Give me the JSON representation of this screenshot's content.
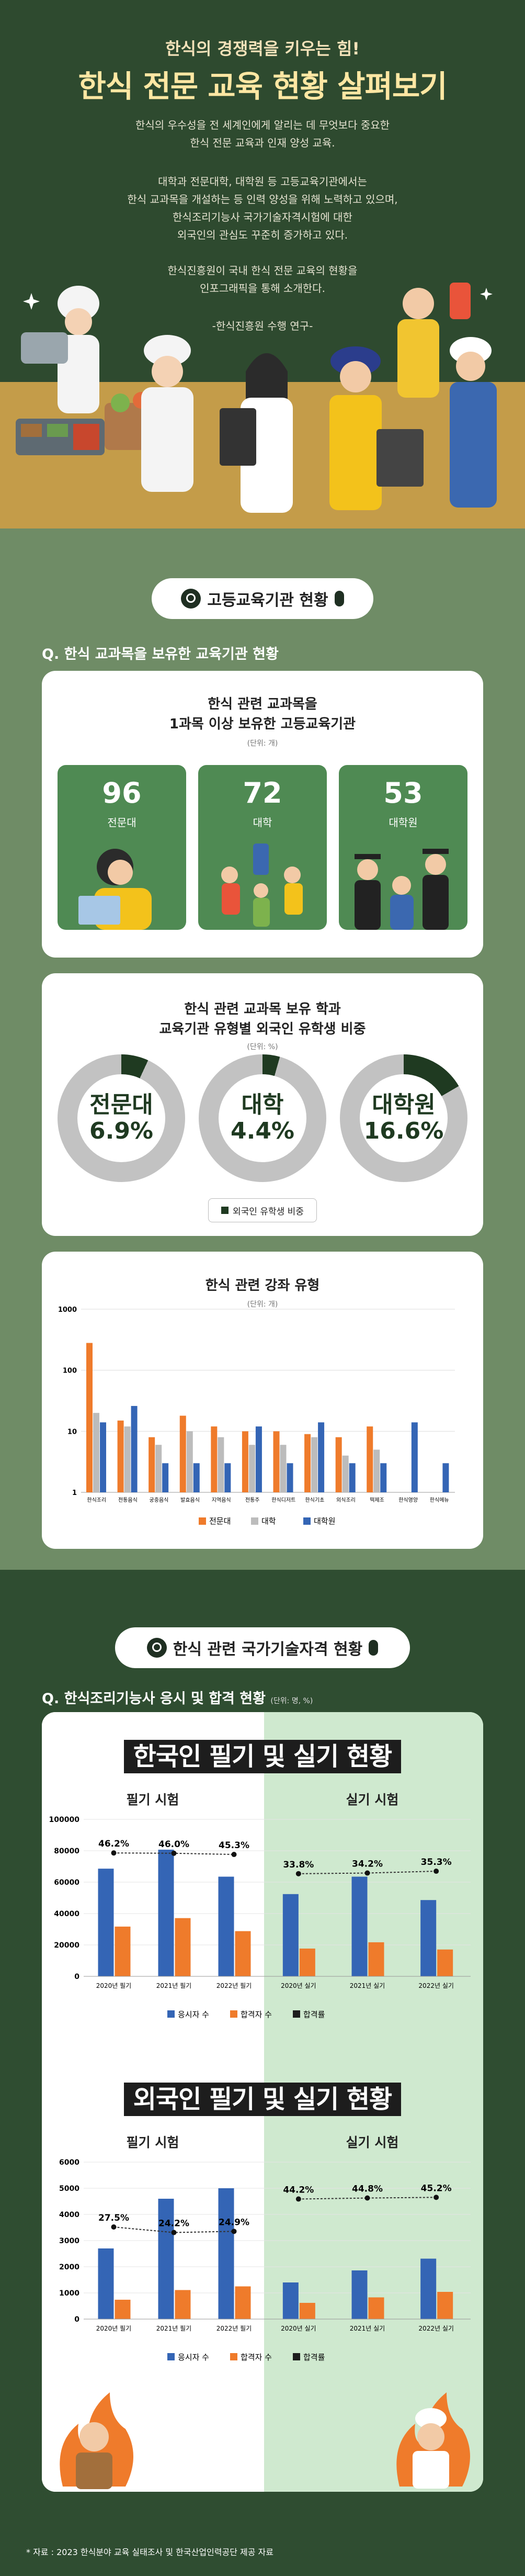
{
  "hero": {
    "subtitle": "한식의 경쟁력을 키우는 힘!",
    "title": "한식 전문 교육 현황 살펴보기",
    "para1": [
      "한식의 우수성을 전 세계인에게 알리는 데 무엇보다 중요한",
      "한식 전문 교육과 인재 양성 교육."
    ],
    "para2": [
      "대학과 전문대학, 대학원 등 고등교육기관에서는",
      "한식 교과목을 개설하는 등 인력 양성을 위해 노력하고 있으며,",
      "한식조리기능사 국가기술자격시험에 대한",
      "외국인의 관심도 꾸준히 증가하고 있다."
    ],
    "para3": [
      "한식진흥원이 국내 한식 전문 교육의 현황을",
      "인포그래픽을 통해 소개한다."
    ],
    "credit": "-한식진흥원 수행 연구-"
  },
  "section1": {
    "pill": "고등교육기관 현황",
    "question": "Q. 한식 교과목을 보유한 교육기관 현황",
    "card1": {
      "title": [
        "한식 관련 교과목을",
        "1과목 이상 보유한 고등교육기관"
      ],
      "unit": "(단위: 개)",
      "items": [
        {
          "num": "96",
          "label": "전문대"
        },
        {
          "num": "72",
          "label": "대학"
        },
        {
          "num": "53",
          "label": "대학원"
        }
      ]
    },
    "card2": {
      "title": [
        "한식 관련 교과목 보유 학과",
        "교육기관 유형별 외국인 유학생 비중"
      ],
      "unit": "(단위: %)",
      "items": [
        {
          "label": "전문대",
          "value": "6.9%",
          "ratio": 0.069
        },
        {
          "label": "대학",
          "value": "4.4%",
          "ratio": 0.044
        },
        {
          "label": "대학원",
          "value": "16.6%",
          "ratio": 0.166
        }
      ],
      "legend": "외국인 유학생 비중"
    },
    "card3": {
      "title": "한식 관련 강좌 유형",
      "unit": "(단위: 개)"
    }
  },
  "section2": {
    "pill": "한식 관련 국가기술자격 현황",
    "question": "Q. 한식조리기능사 응시 및 합격 현황",
    "question_unit": "(단위: 명, %)",
    "korean_title": "한국인 필기 및 실기 현황",
    "foreign_title": "외국인 필기 및 실기 현황",
    "written": "필기 시험",
    "practical": "실기 시험",
    "legend": [
      "응시자 수",
      "합격자 수",
      "합격률"
    ]
  },
  "source": "* 자료 : 2023 한식분야 교육 실태조사 및 한국산업인력공단 제공 자료",
  "colors": {
    "orange": "#ef7b2b",
    "blue": "#3465b5",
    "gray": "#bcbcbc",
    "green": "#4f8a53",
    "dark": "#1d1d1d"
  },
  "chart_data": [
    {
      "type": "bar",
      "title": "한식 관련 강좌 유형",
      "ylabel": "(단위: 개)",
      "yscale": "log",
      "ylim": [
        1,
        1000
      ],
      "categories": [
        "한식조리",
        "전통음식",
        "궁중음식",
        "발효음식",
        "지역음식",
        "전통주",
        "한식디저트",
        "한식기초",
        "외식조리",
        "떡제조",
        "한식영양",
        "한식메뉴"
      ],
      "series": [
        {
          "name": "전문대",
          "values": [
            280,
            15,
            8,
            18,
            12,
            10,
            10,
            9,
            8,
            12,
            1,
            1
          ]
        },
        {
          "name": "대학",
          "values": [
            20,
            12,
            6,
            10,
            8,
            6,
            6,
            8,
            4,
            5,
            1,
            1
          ]
        },
        {
          "name": "대학원",
          "values": [
            14,
            26,
            3,
            3,
            3,
            12,
            3,
            14,
            3,
            3,
            14,
            3
          ]
        }
      ],
      "legend": "bottom"
    },
    {
      "type": "bar",
      "title": "한국인 필기 시험",
      "categories": [
        "2020년 필기",
        "2021년 필기",
        "2022년 필기"
      ],
      "ylim": [
        0,
        100000
      ],
      "yticks": [
        "0",
        "20000",
        "40000",
        "60000",
        "80000",
        "100000"
      ],
      "series": [
        {
          "name": "응시자 수",
          "values": [
            68600,
            80700,
            63500
          ]
        },
        {
          "name": "합격자 수",
          "values": [
            31700,
            37100,
            28800
          ]
        },
        {
          "name": "합격률",
          "values": [
            46.2,
            46.0,
            45.3
          ],
          "labels": [
            "46.2%",
            "46.0%",
            "45.3%"
          ]
        }
      ]
    },
    {
      "type": "bar",
      "title": "한국인 실기 시험",
      "categories": [
        "2020년 실기",
        "2021년 실기",
        "2022년 실기"
      ],
      "ylim": [
        0,
        100000
      ],
      "series": [
        {
          "name": "응시자 수",
          "values": [
            52400,
            63500,
            48600
          ]
        },
        {
          "name": "합격자 수",
          "values": [
            17700,
            21700,
            17100
          ]
        },
        {
          "name": "합격률",
          "values": [
            33.8,
            34.2,
            35.3
          ],
          "labels": [
            "33.8%",
            "34.2%",
            "35.3%"
          ]
        }
      ]
    },
    {
      "type": "bar",
      "title": "외국인 필기 시험",
      "categories": [
        "2020년 필기",
        "2021년 필기",
        "2022년 필기"
      ],
      "ylim": [
        0,
        6000
      ],
      "yticks": [
        "0",
        "1000",
        "2000",
        "3000",
        "4000",
        "5000",
        "6000"
      ],
      "series": [
        {
          "name": "응시자 수",
          "values": [
            2700,
            4600,
            5000
          ]
        },
        {
          "name": "합격자 수",
          "values": [
            740,
            1110,
            1250
          ]
        },
        {
          "name": "합격률",
          "values": [
            27.5,
            24.2,
            24.9
          ],
          "labels": [
            "27.5%",
            "24.2%",
            "24.9%"
          ]
        }
      ]
    },
    {
      "type": "bar",
      "title": "외국인 실기 시험",
      "categories": [
        "2020년 실기",
        "2021년 실기",
        "2022년 실기"
      ],
      "ylim": [
        0,
        6000
      ],
      "series": [
        {
          "name": "응시자 수",
          "values": [
            1400,
            1860,
            2310
          ]
        },
        {
          "name": "합격자 수",
          "values": [
            620,
            830,
            1040
          ]
        },
        {
          "name": "합격률",
          "values": [
            44.2,
            44.8,
            45.2
          ],
          "labels": [
            "44.2%",
            "44.8%",
            "45.2%"
          ]
        }
      ]
    }
  ]
}
